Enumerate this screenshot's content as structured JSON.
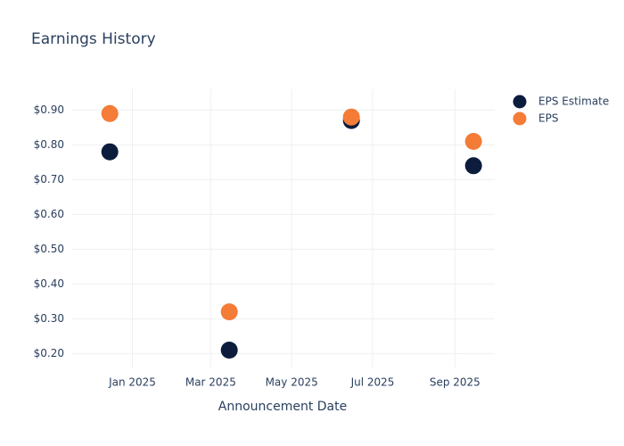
{
  "chart_data": {
    "type": "scatter",
    "title": "Earnings History",
    "x_label": "Announcement Date",
    "x": [
      "2024-12",
      "2025-03",
      "2025-06",
      "2025-09"
    ],
    "xlim": [
      "2024-11",
      "2025-09"
    ],
    "xticks": [
      {
        "value": "2025-01",
        "label": "Jan 2025"
      },
      {
        "value": "2025-03",
        "label": "Mar 2025"
      },
      {
        "value": "2025-05",
        "label": "May 2025"
      },
      {
        "value": "2025-07",
        "label": "Jul 2025"
      },
      {
        "value": "2025-09",
        "label": "Sep 2025"
      }
    ],
    "ylim": [
      0.16,
      0.96
    ],
    "yticks": [
      {
        "value": 0.2,
        "label": "$0.20"
      },
      {
        "value": 0.3,
        "label": "$0.30"
      },
      {
        "value": 0.4,
        "label": "$0.40"
      },
      {
        "value": 0.5,
        "label": "$0.50"
      },
      {
        "value": 0.6,
        "label": "$0.60"
      },
      {
        "value": 0.7,
        "label": "$0.70"
      },
      {
        "value": 0.8,
        "label": "$0.80"
      },
      {
        "value": 0.9,
        "label": "$0.90"
      }
    ],
    "grid": true,
    "legend": "top-right",
    "series": [
      {
        "name": "EPS Estimate",
        "color": "#0c1c3d",
        "values": [
          0.78,
          0.21,
          0.87,
          0.74
        ]
      },
      {
        "name": "EPS",
        "color": "#f47c37",
        "values": [
          0.89,
          0.32,
          0.88,
          0.81
        ]
      }
    ]
  }
}
